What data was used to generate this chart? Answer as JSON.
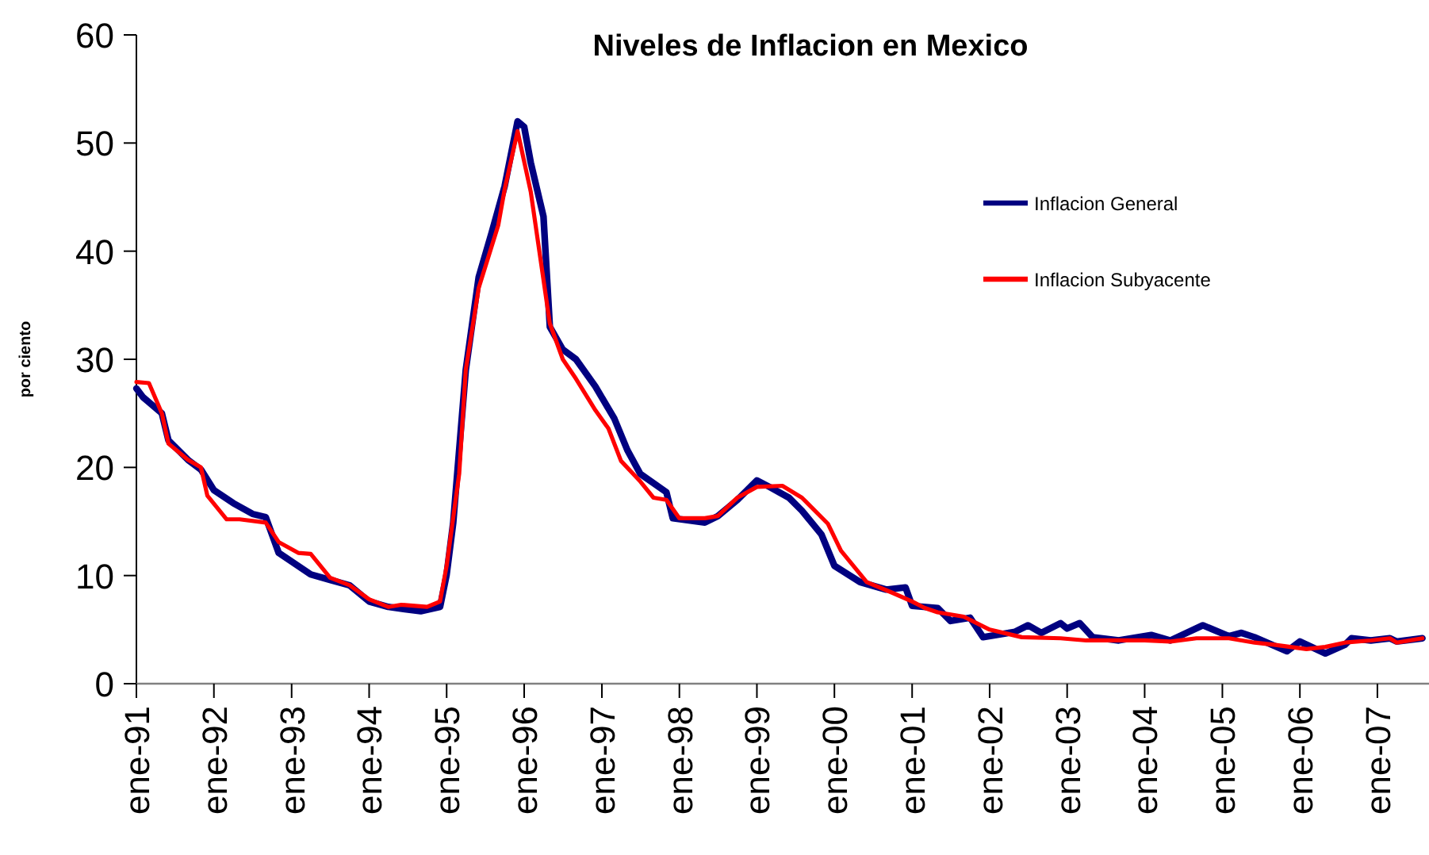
{
  "chart_data": {
    "type": "line",
    "title": "Niveles de Inflacion en Mexico",
    "ylabel": "por ciento",
    "xlim": [
      "1991-01",
      "2007-09"
    ],
    "ylim": [
      0,
      60
    ],
    "yticks": [
      0,
      10,
      20,
      30,
      40,
      50,
      60
    ],
    "xticks": [
      {
        "value": "1991-01",
        "label": "ene-91"
      },
      {
        "value": "1992-01",
        "label": "ene-92"
      },
      {
        "value": "1993-01",
        "label": "ene-93"
      },
      {
        "value": "1994-01",
        "label": "ene-94"
      },
      {
        "value": "1995-01",
        "label": "ene-95"
      },
      {
        "value": "1996-01",
        "label": "ene-96"
      },
      {
        "value": "1997-01",
        "label": "ene-97"
      },
      {
        "value": "1998-01",
        "label": "ene-98"
      },
      {
        "value": "1999-01",
        "label": "ene-99"
      },
      {
        "value": "2000-01",
        "label": "ene-00"
      },
      {
        "value": "2001-01",
        "label": "ene-01"
      },
      {
        "value": "2002-01",
        "label": "ene-02"
      },
      {
        "value": "2003-01",
        "label": "ene-03"
      },
      {
        "value": "2004-01",
        "label": "ene-04"
      },
      {
        "value": "2005-01",
        "label": "ene-05"
      },
      {
        "value": "2006-01",
        "label": "ene-06"
      },
      {
        "value": "2007-01",
        "label": "ene-07"
      }
    ],
    "grid": false,
    "legend": "right",
    "marker": "none",
    "line_style": "solid",
    "series": [
      {
        "name": "Inflacion General",
        "color": "#000080",
        "x": [
          "1991-01",
          "1991-02",
          "1991-05",
          "1991-06",
          "1991-09",
          "1991-11",
          "1992-01",
          "1992-04",
          "1992-07",
          "1992-09",
          "1992-11",
          "1993-04",
          "1993-07",
          "1993-10",
          "1994-01",
          "1994-04",
          "1994-09",
          "1994-12",
          "1995-01",
          "1995-02",
          "1995-04",
          "1995-06",
          "1995-08",
          "1995-10",
          "1995-12",
          "1996-01",
          "1996-02",
          "1996-04",
          "1996-05",
          "1996-07",
          "1996-09",
          "1996-12",
          "1997-03",
          "1997-05",
          "1997-07",
          "1997-11",
          "1997-12",
          "1998-05",
          "1998-07",
          "1998-10",
          "1999-01",
          "1999-03",
          "1999-06",
          "1999-08",
          "1999-11",
          "2000-01",
          "2000-05",
          "2000-09",
          "2000-12",
          "2001-01",
          "2001-05",
          "2001-07",
          "2001-10",
          "2001-12",
          "2002-05",
          "2002-07",
          "2002-09",
          "2002-12",
          "2003-01",
          "2003-03",
          "2003-05",
          "2003-09",
          "2004-02",
          "2004-05",
          "2004-10",
          "2005-02",
          "2005-04",
          "2005-06",
          "2005-11",
          "2006-01",
          "2006-05",
          "2006-08",
          "2006-09",
          "2006-12",
          "2007-03",
          "2007-04",
          "2007-08"
        ],
        "values": [
          27.3,
          26.5,
          25,
          22.5,
          20.7,
          19.8,
          17.9,
          16.7,
          15.7,
          15.4,
          12.1,
          10.1,
          9.6,
          9.1,
          7.6,
          7.1,
          6.7,
          7.1,
          10.1,
          14.9,
          29,
          37.6,
          41.7,
          46,
          52,
          51.5,
          48.2,
          43.2,
          33,
          30.9,
          30,
          27.5,
          24.5,
          21.6,
          19.4,
          17.7,
          15.3,
          14.9,
          15.5,
          17,
          18.8,
          18.2,
          17.2,
          16,
          13.8,
          10.9,
          9.4,
          8.7,
          8.9,
          7.2,
          7,
          5.8,
          6.1,
          4.3,
          4.8,
          5.4,
          4.7,
          5.6,
          5.1,
          5.6,
          4.3,
          4,
          4.5,
          4,
          5.4,
          4.4,
          4.7,
          4.3,
          3,
          3.9,
          2.8,
          3.6,
          4.2,
          4,
          4.2,
          3.9,
          4.2
        ]
      },
      {
        "name": "Inflacion Subyacente",
        "color": "#ff0000",
        "x": [
          "1991-01",
          "1991-03",
          "1991-05",
          "1991-06",
          "1991-09",
          "1991-11",
          "1991-12",
          "1992-03",
          "1992-05",
          "1992-09",
          "1992-11",
          "1993-02",
          "1993-04",
          "1993-07",
          "1993-10",
          "1994-01",
          "1994-04",
          "1994-06",
          "1994-10",
          "1994-12",
          "1995-01",
          "1995-03",
          "1995-04",
          "1995-06",
          "1995-09",
          "1995-10",
          "1995-12",
          "1996-02",
          "1996-05",
          "1996-07",
          "1996-09",
          "1996-12",
          "1997-02",
          "1997-04",
          "1997-07",
          "1997-09",
          "1997-11",
          "1998-01",
          "1998-05",
          "1998-07",
          "1998-10",
          "1999-01",
          "1999-05",
          "1999-08",
          "1999-12",
          "2000-02",
          "2000-06",
          "2000-10",
          "2001-01",
          "2001-03",
          "2001-05",
          "2001-09",
          "2002-01",
          "2002-06",
          "2002-12",
          "2003-04",
          "2003-08",
          "2004-01",
          "2004-05",
          "2004-09",
          "2005-02",
          "2005-06",
          "2005-09",
          "2006-02",
          "2006-05",
          "2006-08",
          "2006-12",
          "2007-03",
          "2007-04",
          "2007-08"
        ],
        "values": [
          27.9,
          27.8,
          25,
          22.2,
          20.7,
          20,
          17.4,
          15.2,
          15.2,
          14.9,
          13.1,
          12.1,
          12,
          9.8,
          9.1,
          7.8,
          7.1,
          7.3,
          7.1,
          7.6,
          10.9,
          19.4,
          29,
          36.6,
          42.4,
          45.7,
          51.1,
          45.5,
          33.3,
          30,
          28.2,
          25.3,
          23.6,
          20.6,
          18.7,
          17.2,
          17,
          15.3,
          15.3,
          15.5,
          17.2,
          18.2,
          18.3,
          17.2,
          14.8,
          12.3,
          9.4,
          8.4,
          7.6,
          7,
          6.6,
          6.2,
          5,
          4.3,
          4.2,
          4,
          4,
          4,
          3.9,
          4.2,
          4.2,
          3.8,
          3.6,
          3.2,
          3.4,
          3.8,
          4,
          4.2,
          3.8,
          4.2
        ]
      }
    ]
  }
}
